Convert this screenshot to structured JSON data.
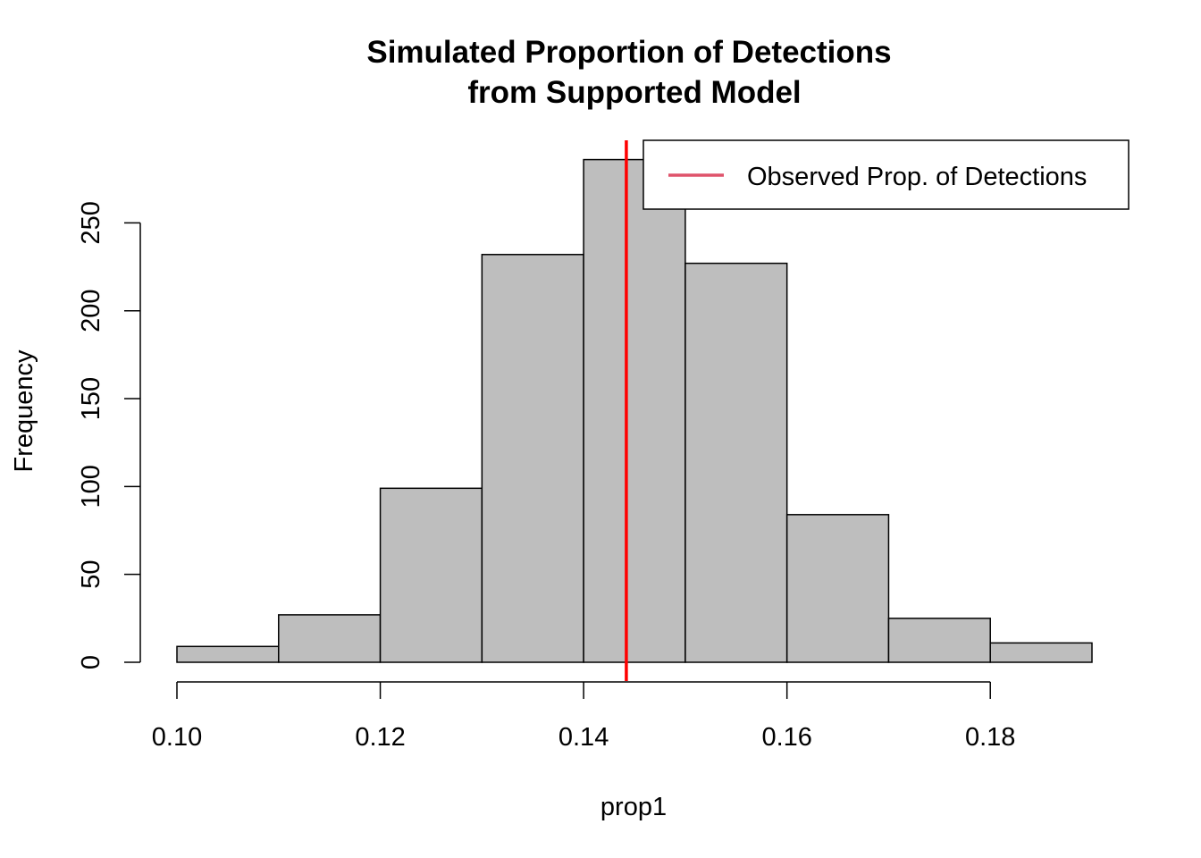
{
  "chart_data": {
    "type": "bar",
    "histogram": true,
    "title": [
      "Simulated Proportion of Detections",
      "from Supported Model"
    ],
    "xlabel": "prop1",
    "ylabel": "Frequency",
    "bins": [
      {
        "from": 0.1,
        "to": 0.11,
        "count": 9
      },
      {
        "from": 0.11,
        "to": 0.12,
        "count": 27
      },
      {
        "from": 0.12,
        "to": 0.13,
        "count": 99
      },
      {
        "from": 0.13,
        "to": 0.14,
        "count": 232
      },
      {
        "from": 0.14,
        "to": 0.15,
        "count": 286
      },
      {
        "from": 0.15,
        "to": 0.16,
        "count": 227
      },
      {
        "from": 0.16,
        "to": 0.17,
        "count": 84
      },
      {
        "from": 0.17,
        "to": 0.18,
        "count": 25
      },
      {
        "from": 0.18,
        "to": 0.19,
        "count": 11
      }
    ],
    "observed_line": {
      "x": 0.1442,
      "color": "#ff0000"
    },
    "bar_fill": "#bebebe",
    "bar_stroke": "#000000",
    "xlim": [
      0.1,
      0.19
    ],
    "ylim": [
      0,
      290
    ],
    "x_ticks": [
      0.1,
      0.12,
      0.14,
      0.16,
      0.18
    ],
    "x_tick_labels": [
      "0.10",
      "0.12",
      "0.14",
      "0.16",
      "0.18"
    ],
    "y_ticks": [
      0,
      50,
      100,
      150,
      200,
      250
    ],
    "y_tick_labels": [
      "0",
      "50",
      "100",
      "150",
      "200",
      "250"
    ],
    "legend": {
      "position": "top-right",
      "entries": [
        {
          "label": "Observed Prop. of Detections",
          "color": "#df536b"
        }
      ]
    },
    "grid": false
  }
}
